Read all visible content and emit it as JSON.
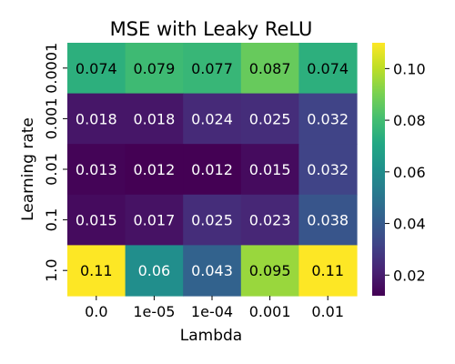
{
  "chart_data": {
    "type": "heatmap",
    "title": "MSE with Leaky ReLU",
    "xlabel": "Lambda",
    "ylabel": "Learning rate",
    "x_categories": [
      "0.0",
      "1e-05",
      "1e-04",
      "0.001",
      "0.01"
    ],
    "y_categories": [
      "0.0001",
      "0.001",
      "0.01",
      "0.1",
      "1.0"
    ],
    "values": [
      [
        0.074,
        0.079,
        0.077,
        0.087,
        0.074
      ],
      [
        0.018,
        0.018,
        0.024,
        0.025,
        0.032
      ],
      [
        0.013,
        0.012,
        0.012,
        0.015,
        0.032
      ],
      [
        0.015,
        0.017,
        0.025,
        0.023,
        0.038
      ],
      [
        0.11,
        0.06,
        0.043,
        0.095,
        0.11
      ]
    ],
    "colormap": "viridis",
    "colorbar": {
      "range": [
        0.012,
        0.11
      ],
      "ticks": [
        "0.02",
        "0.04",
        "0.06",
        "0.08",
        "0.10"
      ]
    },
    "annotation_colors": {
      "dark": "#ffffff",
      "light": "#000000"
    }
  }
}
